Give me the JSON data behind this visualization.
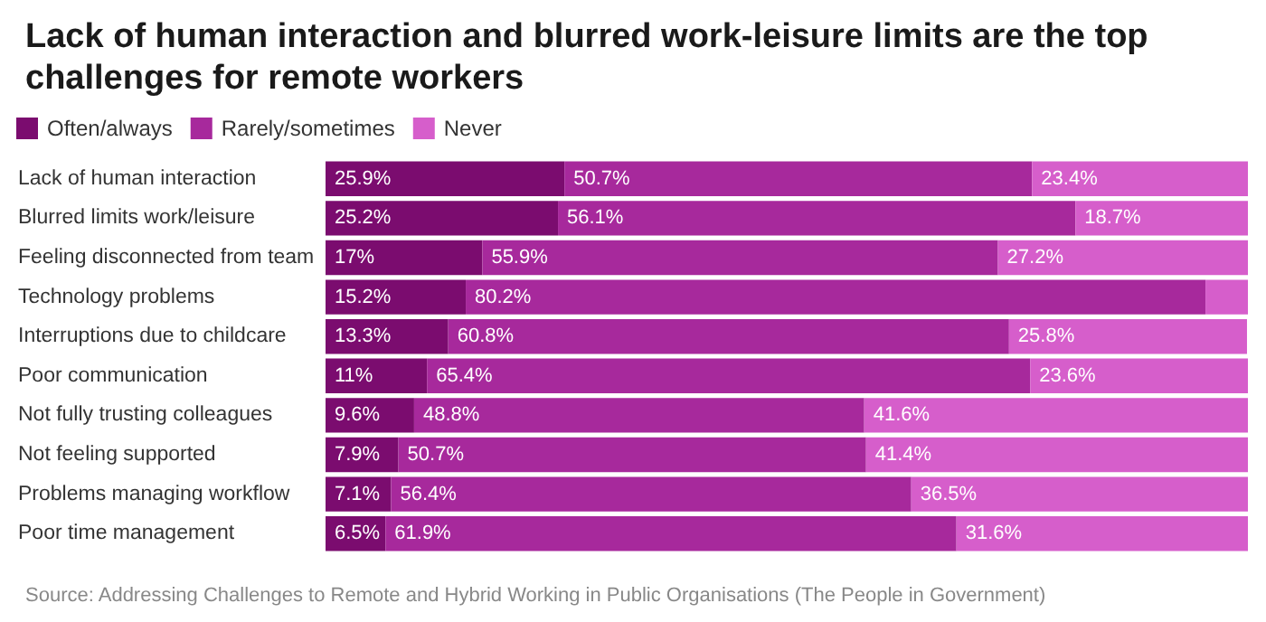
{
  "chart_data": {
    "type": "bar",
    "orientation": "horizontal",
    "stacked": true,
    "title": "Lack of human interaction and blurred work-leisure limits are the top challenges for remote workers",
    "categories": [
      "Lack of human interaction",
      "Blurred limits work/leisure",
      "Feeling disconnected from team",
      "Technology problems",
      "Interruptions due to childcare",
      "Poor communication",
      "Not fully trusting colleagues",
      "Not feeling supported",
      "Problems managing workflow",
      "Poor time management"
    ],
    "series": [
      {
        "name": "Often/always",
        "color": "#7b0c6f",
        "values": [
          25.9,
          25.2,
          17,
          15.2,
          13.3,
          11,
          9.6,
          7.9,
          7.1,
          6.5
        ],
        "value_labels": [
          "25.9%",
          "25.2%",
          "17%",
          "15.2%",
          "13.3%",
          "11%",
          "9.6%",
          "7.9%",
          "7.1%",
          "6.5%"
        ]
      },
      {
        "name": "Rarely/sometimes",
        "color": "#a7299c",
        "values": [
          50.7,
          56.1,
          55.9,
          80.2,
          60.8,
          65.4,
          48.8,
          50.7,
          56.4,
          61.9
        ],
        "value_labels": [
          "50.7%",
          "56.1%",
          "55.9%",
          "80.2%",
          "60.8%",
          "65.4%",
          "48.8%",
          "50.7%",
          "56.4%",
          "61.9%"
        ]
      },
      {
        "name": "Never",
        "color": "#d65ecb",
        "values": [
          23.4,
          18.7,
          27.2,
          4.6,
          25.8,
          23.6,
          41.6,
          41.4,
          36.5,
          31.6
        ],
        "value_labels": [
          "23.4%",
          "18.7%",
          "27.2%",
          null,
          "25.8%",
          "23.6%",
          "41.6%",
          "41.4%",
          "36.5%",
          "31.6%"
        ]
      }
    ],
    "xlim": [
      0,
      100
    ],
    "tick_labels": "y",
    "legend": "top left",
    "annotations": [
      "Source: Addressing Challenges to Remote and Hybrid Working in Public Organisations (The People in Government)"
    ]
  }
}
